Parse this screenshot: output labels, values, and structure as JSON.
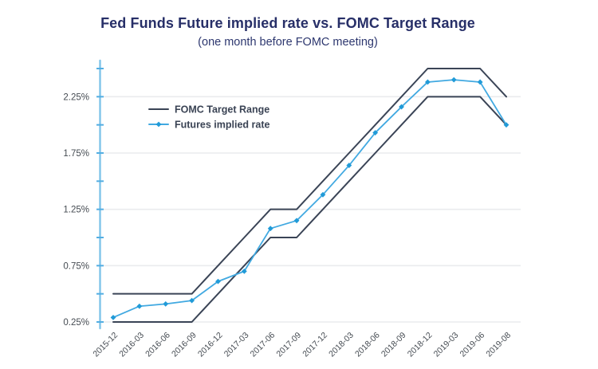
{
  "chart": {
    "title": "Fed Funds Future implied rate vs. FOMC Target Range",
    "subtitle": "(one month before FOMC meeting)"
  },
  "chart_data": {
    "type": "line",
    "title": "Fed Funds Future implied rate vs. FOMC Target Range",
    "subtitle": "(one month before FOMC meeting)",
    "categories": [
      "2015-12",
      "2016-03",
      "2016-06",
      "2016-09",
      "2016-12",
      "2017-03",
      "2017-06",
      "2017-09",
      "2017-12",
      "2018-03",
      "2018-06",
      "2018-09",
      "2018-12",
      "2019-03",
      "2019-06",
      "2019-08"
    ],
    "series": [
      {
        "name": "FOMC Target Range (upper bound)",
        "legend": "FOMC Target Range",
        "color": "#3a4456",
        "marker": "none",
        "values": [
          0.5,
          0.5,
          0.5,
          0.5,
          0.75,
          1.0,
          1.25,
          1.25,
          1.5,
          1.75,
          2.0,
          2.25,
          2.5,
          2.5,
          2.5,
          2.25
        ]
      },
      {
        "name": "FOMC Target Range (lower bound)",
        "legend": "FOMC Target Range",
        "color": "#3a4456",
        "marker": "none",
        "values": [
          0.25,
          0.25,
          0.25,
          0.25,
          0.5,
          0.75,
          1.0,
          1.0,
          1.25,
          1.5,
          1.75,
          2.0,
          2.25,
          2.25,
          2.25,
          2.0
        ]
      },
      {
        "name": "Futures implied rate",
        "legend": "Futures implied rate",
        "color": "#41a9e1",
        "marker": "diamond",
        "marker_color": "#219bd8",
        "values": [
          0.29,
          0.39,
          0.41,
          0.44,
          0.61,
          0.7,
          1.08,
          1.15,
          1.38,
          1.64,
          1.93,
          2.16,
          2.38,
          2.4,
          2.38,
          2.0
        ]
      }
    ],
    "xlabel": "",
    "ylabel": "",
    "y_axis": {
      "min": 0.25,
      "max": 2.5,
      "tick_step": 0.25,
      "labeled_tick_step": 0.5,
      "tick_labels": [
        "0.25%",
        "0.75%",
        "1.25%",
        "1.75%",
        "2.25%"
      ],
      "unit": "%"
    },
    "x_axis": {
      "labels_rotated_degrees": -45
    },
    "legend": {
      "position": "inside-top-left",
      "items": [
        {
          "label": "FOMC Target Range",
          "swatch": "line",
          "color": "#3a4456"
        },
        {
          "label": "Futures implied rate",
          "swatch": "line-diamond",
          "color": "#41a9e1",
          "marker_color": "#219bd8"
        }
      ]
    },
    "grid": {
      "horizontal": true,
      "at_labeled_ticks_only": true
    },
    "colors": {
      "axis": "#7fc4ea",
      "tick": "#54aee2",
      "grid": "#eaebee",
      "tick_label": "#454b52",
      "legend_text": "#3a4354",
      "title": "#272f68"
    }
  }
}
